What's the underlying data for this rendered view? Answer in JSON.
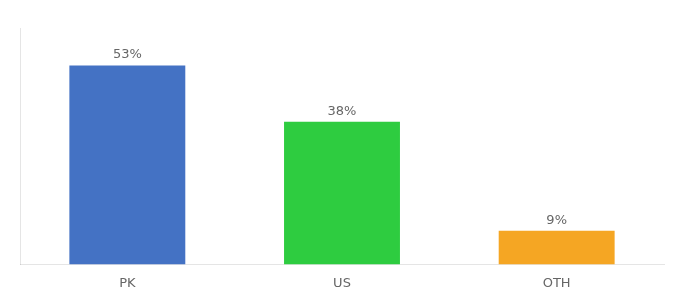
{
  "chart_data": {
    "type": "bar",
    "categories": [
      "PK",
      "US",
      "OTH"
    ],
    "values": [
      53,
      38,
      9
    ],
    "value_labels": [
      "53%",
      "38%",
      "9%"
    ],
    "colors": [
      "#4472c4",
      "#2ecc40",
      "#f5a623"
    ],
    "ylim": [
      0,
      63
    ],
    "data_labels": true,
    "tick_labels": "x",
    "grid": false
  }
}
